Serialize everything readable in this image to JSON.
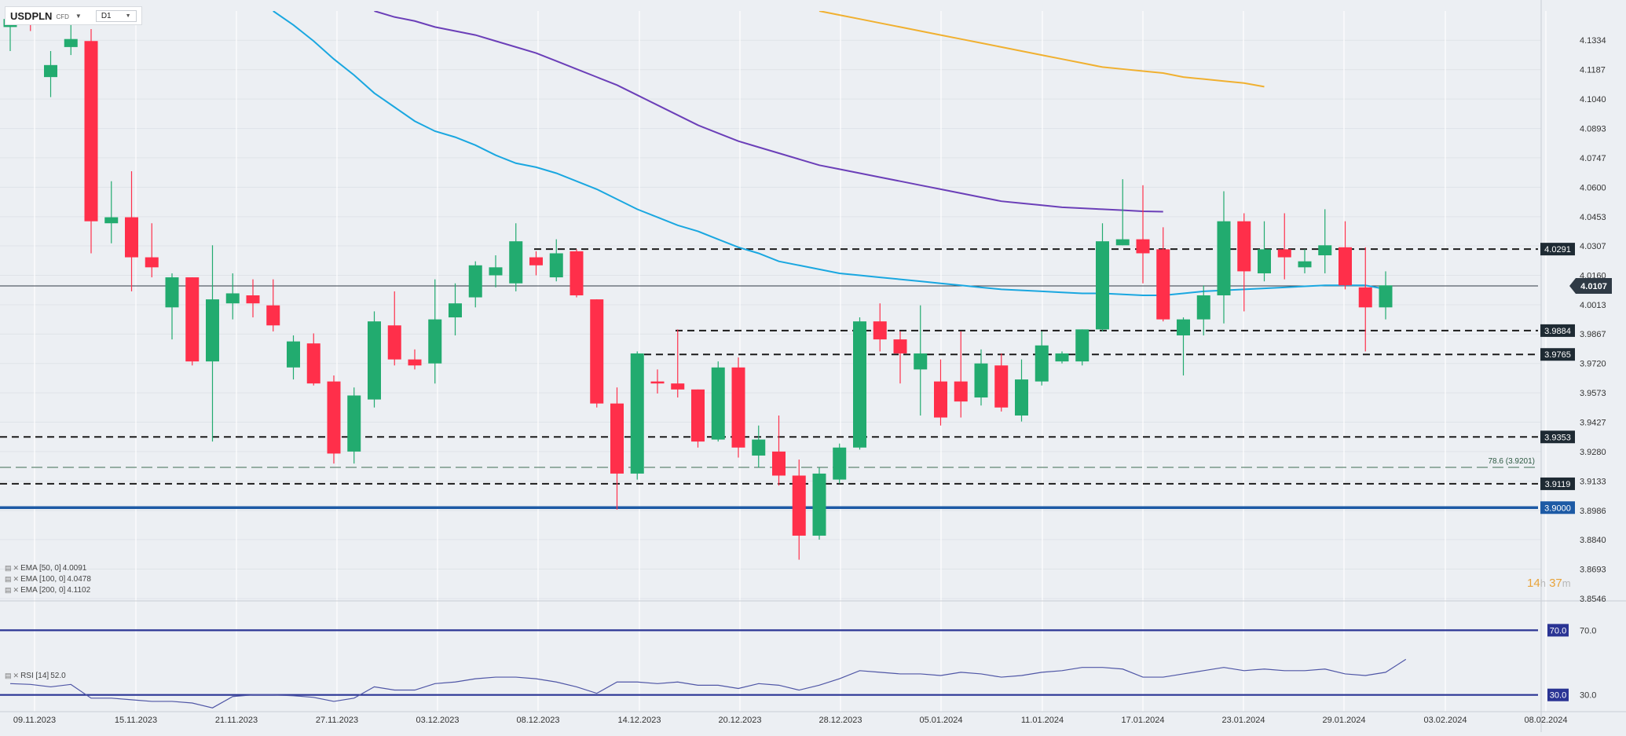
{
  "header": {
    "symbol": "USDPLN",
    "tag": "CFD",
    "timeframe": "D1"
  },
  "colors": {
    "bull": "#22ab6f",
    "bear": "#ff2f4a",
    "ema50": "#1aa7e0",
    "ema100": "#6b3fb8",
    "ema200": "#f0b030",
    "support": "#1d5aa5",
    "rsi_line": "#4f56a6",
    "rsi_band": "#2a3494"
  },
  "indicators": {
    "ema": [
      {
        "label": "EMA [50, 0]",
        "value": "4.0091"
      },
      {
        "label": "EMA [100, 0]",
        "value": "4.0478"
      },
      {
        "label": "EMA [200, 0]",
        "value": "4.1102"
      }
    ],
    "rsi": {
      "label": "RSI [14]",
      "value": "52.0"
    }
  },
  "countdown": {
    "hours": "14",
    "h": "h",
    "minutes": "37",
    "m": "m"
  },
  "chart_data": [
    {
      "type": "candlestick",
      "symbol": "USDPLN",
      "timeframe": "D1",
      "ylim": [
        3.8546,
        4.148
      ],
      "y_ticks": [
        "4.1334",
        "4.1187",
        "4.1040",
        "4.0893",
        "4.0747",
        "4.0600",
        "4.0453",
        "4.0307",
        "4.0160",
        "4.0013",
        "3.9867",
        "3.9720",
        "3.9573",
        "3.9427",
        "3.9280",
        "3.9133",
        "3.8986",
        "3.8840",
        "3.8693",
        "3.8546"
      ],
      "x_ticks": [
        "09.11.2023",
        "15.11.2023",
        "21.11.2023",
        "27.11.2023",
        "03.12.2023",
        "08.12.2023",
        "14.12.2023",
        "20.12.2023",
        "28.12.2023",
        "05.01.2024",
        "11.01.2024",
        "17.01.2024",
        "23.01.2024",
        "29.01.2024",
        "03.02.2024",
        "08.02.2024"
      ],
      "current_price": "4.0107",
      "price_labels": [
        {
          "label": "4.0291",
          "value": 4.0291,
          "style": "dashed"
        },
        {
          "label": "3.9884",
          "value": 3.9884,
          "style": "dashed"
        },
        {
          "label": "3.9765",
          "value": 3.9765,
          "style": "dashed"
        },
        {
          "label": "3.9353",
          "value": 3.9353,
          "style": "dashed"
        },
        {
          "label": "3.9119",
          "value": 3.9119,
          "style": "dashed"
        },
        {
          "label": "3.9000",
          "value": 3.9,
          "style": "solid"
        }
      ],
      "fib_label": "78.6 (3.9201)",
      "fib_value": 3.9201,
      "candles": [
        {
          "o": 4.14,
          "h": 4.144,
          "l": 4.128,
          "c": 4.144
        },
        {
          "o": 4.144,
          "h": 4.146,
          "l": 4.138,
          "c": 4.143
        },
        {
          "o": 4.115,
          "h": 4.128,
          "l": 4.105,
          "c": 4.121
        },
        {
          "o": 4.13,
          "h": 4.146,
          "l": 4.126,
          "c": 4.134
        },
        {
          "o": 4.133,
          "h": 4.139,
          "l": 4.027,
          "c": 4.043
        },
        {
          "o": 4.042,
          "h": 4.063,
          "l": 4.032,
          "c": 4.045
        },
        {
          "o": 4.045,
          "h": 4.068,
          "l": 4.008,
          "c": 4.025
        },
        {
          "o": 4.025,
          "h": 4.042,
          "l": 4.015,
          "c": 4.02
        },
        {
          "o": 4.0,
          "h": 4.017,
          "l": 3.984,
          "c": 4.015
        },
        {
          "o": 4.015,
          "h": 4.015,
          "l": 3.971,
          "c": 3.973
        },
        {
          "o": 3.973,
          "h": 4.031,
          "l": 3.933,
          "c": 4.004
        },
        {
          "o": 4.002,
          "h": 4.017,
          "l": 3.994,
          "c": 4.007
        },
        {
          "o": 4.006,
          "h": 4.014,
          "l": 3.995,
          "c": 4.002
        },
        {
          "o": 4.001,
          "h": 4.014,
          "l": 3.988,
          "c": 3.991
        },
        {
          "o": 3.97,
          "h": 3.986,
          "l": 3.964,
          "c": 3.983
        },
        {
          "o": 3.982,
          "h": 3.987,
          "l": 3.961,
          "c": 3.962
        },
        {
          "o": 3.963,
          "h": 3.966,
          "l": 3.922,
          "c": 3.927
        },
        {
          "o": 3.928,
          "h": 3.96,
          "l": 3.922,
          "c": 3.956
        },
        {
          "o": 3.954,
          "h": 3.998,
          "l": 3.95,
          "c": 3.993
        },
        {
          "o": 3.991,
          "h": 4.008,
          "l": 3.971,
          "c": 3.974
        },
        {
          "o": 3.974,
          "h": 3.979,
          "l": 3.969,
          "c": 3.971
        },
        {
          "o": 3.972,
          "h": 4.014,
          "l": 3.962,
          "c": 3.994
        },
        {
          "o": 3.995,
          "h": 4.012,
          "l": 3.986,
          "c": 4.002
        },
        {
          "o": 4.005,
          "h": 4.023,
          "l": 4.0,
          "c": 4.021
        },
        {
          "o": 4.016,
          "h": 4.026,
          "l": 4.01,
          "c": 4.02
        },
        {
          "o": 4.012,
          "h": 4.042,
          "l": 4.008,
          "c": 4.033
        },
        {
          "o": 4.025,
          "h": 4.028,
          "l": 4.016,
          "c": 4.021
        },
        {
          "o": 4.015,
          "h": 4.034,
          "l": 4.013,
          "c": 4.027
        },
        {
          "o": 4.028,
          "h": 4.029,
          "l": 4.005,
          "c": 4.006
        },
        {
          "o": 4.004,
          "h": 4.004,
          "l": 3.95,
          "c": 3.952
        },
        {
          "o": 3.952,
          "h": 3.96,
          "l": 3.899,
          "c": 3.917
        },
        {
          "o": 3.917,
          "h": 3.978,
          "l": 3.914,
          "c": 3.977
        },
        {
          "o": 3.963,
          "h": 3.969,
          "l": 3.957,
          "c": 3.962
        },
        {
          "o": 3.962,
          "h": 3.989,
          "l": 3.955,
          "c": 3.959
        },
        {
          "o": 3.959,
          "h": 3.959,
          "l": 3.93,
          "c": 3.933
        },
        {
          "o": 3.934,
          "h": 3.973,
          "l": 3.933,
          "c": 3.97
        },
        {
          "o": 3.97,
          "h": 3.975,
          "l": 3.925,
          "c": 3.93
        },
        {
          "o": 3.926,
          "h": 3.941,
          "l": 3.92,
          "c": 3.934
        },
        {
          "o": 3.928,
          "h": 3.946,
          "l": 3.911,
          "c": 3.916
        },
        {
          "o": 3.916,
          "h": 3.924,
          "l": 3.874,
          "c": 3.886
        },
        {
          "o": 3.886,
          "h": 3.92,
          "l": 3.884,
          "c": 3.917
        },
        {
          "o": 3.914,
          "h": 3.932,
          "l": 3.912,
          "c": 3.93
        },
        {
          "o": 3.93,
          "h": 3.995,
          "l": 3.929,
          "c": 3.993
        },
        {
          "o": 3.993,
          "h": 4.002,
          "l": 3.978,
          "c": 3.984
        },
        {
          "o": 3.984,
          "h": 3.988,
          "l": 3.962,
          "c": 3.977
        },
        {
          "o": 3.969,
          "h": 4.001,
          "l": 3.946,
          "c": 3.977
        },
        {
          "o": 3.963,
          "h": 3.974,
          "l": 3.941,
          "c": 3.945
        },
        {
          "o": 3.963,
          "h": 3.988,
          "l": 3.945,
          "c": 3.953
        },
        {
          "o": 3.955,
          "h": 3.979,
          "l": 3.951,
          "c": 3.972
        },
        {
          "o": 3.971,
          "h": 3.977,
          "l": 3.948,
          "c": 3.95
        },
        {
          "o": 3.946,
          "h": 3.974,
          "l": 3.943,
          "c": 3.964
        },
        {
          "o": 3.963,
          "h": 3.988,
          "l": 3.961,
          "c": 3.981
        },
        {
          "o": 3.973,
          "h": 3.978,
          "l": 3.972,
          "c": 3.977
        },
        {
          "o": 3.973,
          "h": 3.989,
          "l": 3.971,
          "c": 3.989
        },
        {
          "o": 3.989,
          "h": 4.042,
          "l": 3.988,
          "c": 4.033
        },
        {
          "o": 4.031,
          "h": 4.064,
          "l": 4.031,
          "c": 4.034
        },
        {
          "o": 4.034,
          "h": 4.061,
          "l": 4.012,
          "c": 4.027
        },
        {
          "o": 4.029,
          "h": 4.04,
          "l": 3.993,
          "c": 3.994
        },
        {
          "o": 3.986,
          "h": 3.995,
          "l": 3.966,
          "c": 3.994
        },
        {
          "o": 3.994,
          "h": 4.011,
          "l": 3.986,
          "c": 4.006
        },
        {
          "o": 4.006,
          "h": 4.058,
          "l": 3.992,
          "c": 4.043
        },
        {
          "o": 4.043,
          "h": 4.047,
          "l": 3.998,
          "c": 4.018
        },
        {
          "o": 4.017,
          "h": 4.043,
          "l": 4.013,
          "c": 4.029
        },
        {
          "o": 4.029,
          "h": 4.047,
          "l": 4.014,
          "c": 4.025
        },
        {
          "o": 4.02,
          "h": 4.029,
          "l": 4.017,
          "c": 4.023
        },
        {
          "o": 4.026,
          "h": 4.049,
          "l": 4.017,
          "c": 4.031
        },
        {
          "o": 4.03,
          "h": 4.043,
          "l": 4.009,
          "c": 4.011
        },
        {
          "o": 4.01,
          "h": 4.03,
          "l": 3.978,
          "c": 4.0
        },
        {
          "o": 4.0,
          "h": 4.018,
          "l": 3.994,
          "c": 4.011
        }
      ]
    },
    {
      "type": "line",
      "name": "EMA [50, 0]",
      "values": [
        4.148,
        4.141,
        4.133,
        4.124,
        4.116,
        4.107,
        4.1,
        4.093,
        4.088,
        4.085,
        4.081,
        4.076,
        4.072,
        4.07,
        4.067,
        4.063,
        4.059,
        4.054,
        4.049,
        4.045,
        4.041,
        4.038,
        4.034,
        4.03,
        4.027,
        4.023,
        4.021,
        4.019,
        4.017,
        4.016,
        4.015,
        4.014,
        4.013,
        4.012,
        4.011,
        4.01,
        4.009,
        4.0085,
        4.008,
        4.0075,
        4.007,
        4.007,
        4.0065,
        4.006,
        4.006,
        4.007,
        4.008,
        4.0085,
        4.009,
        4.0095,
        4.01,
        4.0105,
        4.011,
        4.011,
        4.011,
        4.0091
      ],
      "x_start_index": 13
    },
    {
      "type": "line",
      "name": "EMA [100, 0]",
      "values": [
        4.148,
        4.145,
        4.143,
        4.14,
        4.138,
        4.136,
        4.133,
        4.13,
        4.127,
        4.123,
        4.119,
        4.115,
        4.111,
        4.106,
        4.101,
        4.096,
        4.091,
        4.087,
        4.083,
        4.08,
        4.077,
        4.074,
        4.071,
        4.069,
        4.067,
        4.065,
        4.063,
        4.061,
        4.059,
        4.057,
        4.055,
        4.053,
        4.052,
        4.051,
        4.05,
        4.0495,
        4.049,
        4.0485,
        4.048,
        4.0478
      ],
      "x_start_index": 18
    },
    {
      "type": "line",
      "name": "EMA [200, 0]",
      "values": [
        4.148,
        4.146,
        4.144,
        4.142,
        4.14,
        4.138,
        4.136,
        4.134,
        4.132,
        4.13,
        4.128,
        4.126,
        4.124,
        4.122,
        4.12,
        4.119,
        4.118,
        4.117,
        4.115,
        4.114,
        4.113,
        4.112,
        4.1102
      ],
      "x_start_index": 40
    },
    {
      "type": "line",
      "name": "RSI [14]",
      "ylim": [
        25,
        76
      ],
      "levels": [
        {
          "label": "70.0",
          "value": 70
        },
        {
          "label": "30.0",
          "value": 30
        }
      ],
      "values": [
        37,
        36.5,
        35,
        36.5,
        28,
        28,
        27,
        26,
        26,
        25,
        22,
        29,
        30,
        30,
        29.5,
        28.5,
        26,
        28,
        35,
        33,
        33,
        37,
        38,
        40,
        41,
        41,
        40,
        38,
        35,
        31,
        38,
        38,
        37,
        38,
        36,
        36,
        34,
        37,
        36,
        33,
        36,
        40,
        45,
        44,
        43,
        43,
        42,
        44,
        43,
        41,
        42,
        44,
        45,
        47,
        47,
        46,
        41,
        41,
        43,
        45,
        47,
        45,
        46,
        45,
        45,
        46,
        43,
        42,
        44,
        52
      ]
    }
  ]
}
